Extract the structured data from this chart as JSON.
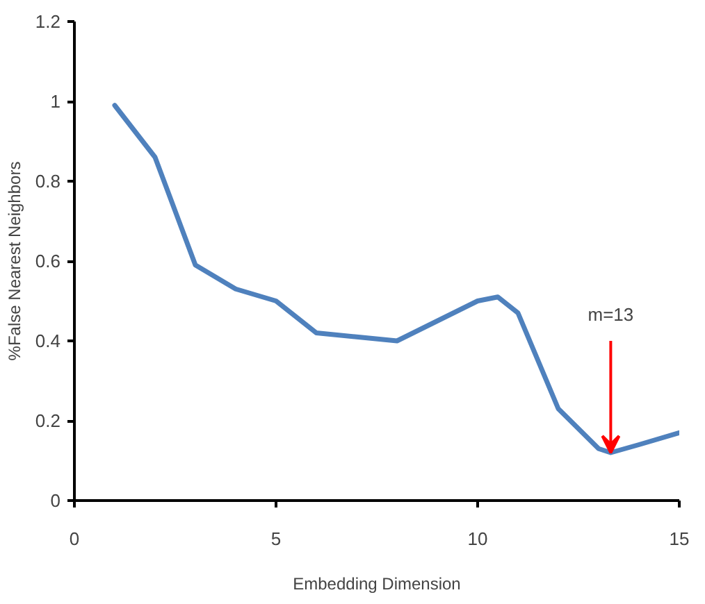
{
  "chart_data": {
    "type": "line",
    "xlabel": "Embedding Dimension",
    "ylabel": "%False Nearest Neighbors",
    "x": [
      1,
      2,
      3,
      4,
      5,
      6,
      7,
      8,
      9,
      10,
      10.5,
      11,
      12,
      13,
      13.3,
      14,
      15
    ],
    "series": [
      {
        "color": "#4f81bd",
        "values": [
          0.99,
          0.86,
          0.59,
          0.53,
          0.5,
          0.42,
          0.41,
          0.4,
          0.45,
          0.5,
          0.51,
          0.47,
          0.23,
          0.13,
          0.12,
          0.14,
          0.17
        ]
      }
    ],
    "xlim": [
      0,
      15
    ],
    "ylim": [
      0,
      1.2
    ],
    "xticks": [
      0,
      5,
      10,
      15
    ],
    "yticks": [
      0,
      0.2,
      0.4,
      0.6,
      0.8,
      1,
      1.2
    ],
    "annotations": [
      {
        "text": "m=13",
        "x": 13.3,
        "y": 0.12
      }
    ],
    "marker": "none",
    "line_style": "solid"
  }
}
